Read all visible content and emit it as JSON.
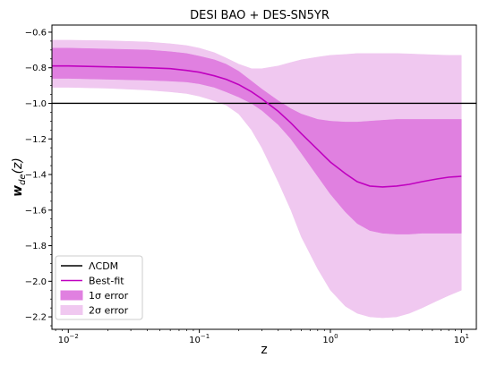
{
  "chart_data": {
    "type": "line",
    "title": "DESI BAO + DES-SN5YR",
    "xlabel": "z",
    "ylabel": "w_de(z)",
    "xscale": "log",
    "xlim": [
      0.0075,
      13
    ],
    "ylim": [
      -2.27,
      -0.56
    ],
    "yticks": [
      -0.6,
      -0.8,
      -1.0,
      -1.2,
      -1.4,
      -1.6,
      -1.8,
      -2.0,
      -2.2
    ],
    "ytick_labels": [
      "−0.6",
      "−0.8",
      "−1.0",
      "−1.2",
      "−1.4",
      "−1.6",
      "−1.8",
      "−2.0",
      "−2.2"
    ],
    "xticks": [
      0.01,
      0.1,
      1,
      10
    ],
    "xtick_labels": [
      {
        "base": "10",
        "exp": "−2"
      },
      {
        "base": "10",
        "exp": "−1"
      },
      {
        "base": "10",
        "exp": "0"
      },
      {
        "base": "10",
        "exp": "1"
      }
    ],
    "z": [
      0.0075,
      0.01,
      0.02,
      0.04,
      0.06,
      0.08,
      0.1,
      0.13,
      0.16,
      0.2,
      0.25,
      0.3,
      0.4,
      0.5,
      0.6,
      0.8,
      1.0,
      1.3,
      1.6,
      2.0,
      2.5,
      3.2,
      4.0,
      5.0,
      6.5,
      8.0,
      10.0
    ],
    "series": [
      {
        "name": "ΛCDM",
        "kind": "hline",
        "value": -1.0,
        "color": "#000000"
      },
      {
        "name": "Best-fit",
        "kind": "line",
        "color": "#c000c0",
        "values": [
          -0.79,
          -0.79,
          -0.795,
          -0.8,
          -0.805,
          -0.815,
          -0.825,
          -0.845,
          -0.865,
          -0.895,
          -0.935,
          -0.975,
          -1.045,
          -1.11,
          -1.17,
          -1.26,
          -1.33,
          -1.395,
          -1.44,
          -1.465,
          -1.47,
          -1.465,
          -1.455,
          -1.44,
          -1.425,
          -1.415,
          -1.41
        ]
      },
      {
        "name": "1σ error",
        "kind": "band",
        "color": "#e080e0",
        "upper": [
          -0.69,
          -0.69,
          -0.695,
          -0.7,
          -0.71,
          -0.72,
          -0.735,
          -0.755,
          -0.78,
          -0.82,
          -0.875,
          -0.92,
          -0.985,
          -1.03,
          -1.06,
          -1.09,
          -1.1,
          -1.105,
          -1.105,
          -1.1,
          -1.095,
          -1.09,
          -1.09,
          -1.09,
          -1.09,
          -1.09,
          -1.09
        ],
        "lower": [
          -0.86,
          -0.86,
          -0.865,
          -0.87,
          -0.875,
          -0.88,
          -0.89,
          -0.91,
          -0.935,
          -0.965,
          -1.0,
          -1.04,
          -1.12,
          -1.2,
          -1.28,
          -1.41,
          -1.51,
          -1.61,
          -1.675,
          -1.715,
          -1.73,
          -1.735,
          -1.735,
          -1.73,
          -1.73,
          -1.73,
          -1.73
        ]
      },
      {
        "name": "2σ error",
        "kind": "band",
        "color": "#f0c8f0",
        "upper": [
          -0.645,
          -0.645,
          -0.648,
          -0.655,
          -0.665,
          -0.675,
          -0.69,
          -0.715,
          -0.745,
          -0.78,
          -0.805,
          -0.805,
          -0.79,
          -0.77,
          -0.755,
          -0.74,
          -0.73,
          -0.725,
          -0.72,
          -0.72,
          -0.72,
          -0.72,
          -0.722,
          -0.725,
          -0.728,
          -0.73,
          -0.73
        ],
        "lower": [
          -0.91,
          -0.91,
          -0.915,
          -0.925,
          -0.935,
          -0.945,
          -0.96,
          -0.985,
          -1.01,
          -1.06,
          -1.15,
          -1.25,
          -1.44,
          -1.6,
          -1.75,
          -1.93,
          -2.05,
          -2.14,
          -2.18,
          -2.2,
          -2.205,
          -2.2,
          -2.18,
          -2.15,
          -2.11,
          -2.08,
          -2.05
        ]
      }
    ],
    "legend": {
      "position": "lower-left",
      "entries": [
        {
          "label": "ΛCDM",
          "kind": "line",
          "color": "#000000"
        },
        {
          "label": "Best-fit",
          "kind": "line",
          "color": "#c000c0"
        },
        {
          "label": "1σ error",
          "kind": "patch",
          "color": "#e080e0"
        },
        {
          "label": "2σ error",
          "kind": "patch",
          "color": "#f0c8f0"
        }
      ]
    },
    "grid": false
  }
}
